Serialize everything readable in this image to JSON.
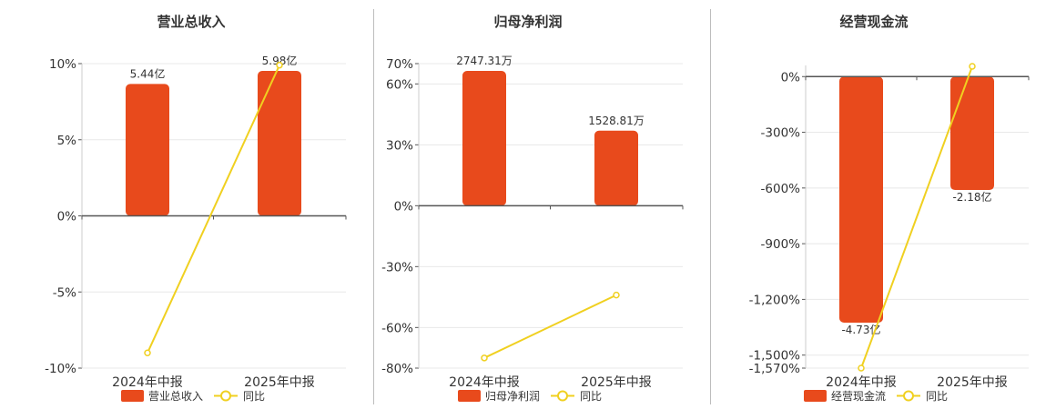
{
  "chart_data": [
    {
      "type": "bar",
      "title": "营业总收入",
      "categories": [
        "2024年中报",
        "2025年中报"
      ],
      "series": [
        {
          "name": "营业总收入",
          "values": [
            5.44,
            5.98
          ],
          "data_labels": [
            "5.44亿",
            "5.98亿"
          ],
          "unit": "亿"
        },
        {
          "name": "同比",
          "type": "line",
          "values": [
            -9.0,
            9.9
          ],
          "unit": "%"
        }
      ],
      "yaxis": {
        "ticks": [
          "10%",
          "5%",
          "0%",
          "-5%",
          "-10%"
        ],
        "tick_values": [
          10,
          5,
          0,
          -5,
          -10
        ],
        "ylim": [
          -10,
          10
        ]
      },
      "legend": "bottom",
      "grid": true
    },
    {
      "type": "bar",
      "title": "归母净利润",
      "categories": [
        "2024年中报",
        "2025年中报"
      ],
      "series": [
        {
          "name": "归母净利润",
          "values": [
            2747.31,
            1528.81
          ],
          "data_labels": [
            "2747.31万",
            "1528.81万"
          ],
          "unit": "万"
        },
        {
          "name": "同比",
          "type": "line",
          "values": [
            -75.0,
            -44.0
          ],
          "unit": "%"
        }
      ],
      "yaxis": {
        "ticks": [
          "70%",
          "60%",
          "30%",
          "0%",
          "-30%",
          "-60%",
          "-80%"
        ],
        "tick_values": [
          70,
          60,
          30,
          0,
          -30,
          -60,
          -80
        ],
        "ylim": [
          -80,
          70
        ]
      },
      "legend": "bottom",
      "grid": true
    },
    {
      "type": "bar",
      "title": "经营现金流",
      "categories": [
        "2024年中报",
        "2025年中报"
      ],
      "series": [
        {
          "name": "经营现金流",
          "values": [
            -4.73,
            -2.18
          ],
          "data_labels": [
            "-4.73亿",
            "-2.18亿"
          ],
          "unit": "亿"
        },
        {
          "name": "同比",
          "type": "line",
          "values": [
            -1570,
            55
          ],
          "unit": "%"
        }
      ],
      "yaxis": {
        "ticks": [
          "0%",
          "-300%",
          "-600%",
          "-900%",
          "-1,200%",
          "-1,500%",
          "-1,570%"
        ],
        "tick_values": [
          0,
          -300,
          -600,
          -900,
          -1200,
          -1500,
          -1570
        ],
        "ylim": [
          -1570,
          60
        ]
      },
      "legend": "bottom",
      "grid": true
    }
  ],
  "colors": {
    "bar": "#e84a1c",
    "line": "#f0d020",
    "grid": "#e8e8e8",
    "axis": "#555555",
    "text": "#333333"
  }
}
